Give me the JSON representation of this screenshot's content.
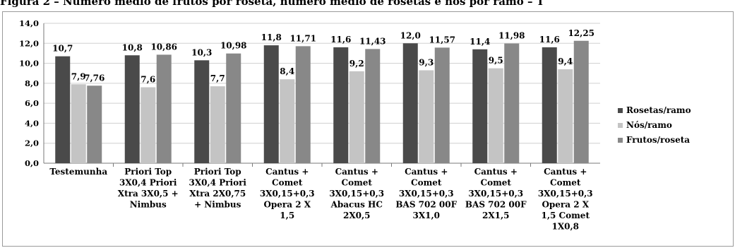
{
  "figure": {
    "title": "Figura 2 – Número médio de frutos por roseta, número médio de rosetas e nós por ramo – T"
  },
  "chart_data": {
    "type": "bar",
    "title": "",
    "xlabel": "",
    "ylabel": "",
    "ylim": [
      0,
      14
    ],
    "yticks": [
      "0,0",
      "2,0",
      "4,0",
      "6,0",
      "8,0",
      "10,0",
      "12,0",
      "14,0"
    ],
    "grid": true,
    "legend_position": "right",
    "categories": [
      "Testemunha",
      "Priori Top 3X0,4 Priori Xtra 3X0,5 + Nimbus",
      "Priori Top 3X0,4 Priori Xtra 2X0,75 + Nimbus",
      "Cantus + Comet 3X0,15+0,3 Opera 2 X 1,5",
      "Cantus + Comet 3X0,15+0,3 Abacus HC 2X0,5",
      "Cantus + Comet 3X0,15+0,3 BAS 702 00F 3X1,0",
      "Cantus + Comet 3X0,15+0,3 BAS 702 00F 2X1,5",
      "Cantus + Comet 3X0,15+0,3 Opera 2 X 1,5 Comet 1X0,8"
    ],
    "category_lines": [
      [
        "Testemunha"
      ],
      [
        "Priori Top",
        "3X0,4 Priori",
        "Xtra 3X0,5 +",
        "Nimbus"
      ],
      [
        "Priori Top",
        "3X0,4 Priori",
        "Xtra 2X0,75",
        "+ Nimbus"
      ],
      [
        "Cantus +",
        "Comet",
        "3X0,15+0,3",
        "Opera 2 X",
        "1,5"
      ],
      [
        "Cantus +",
        "Comet",
        "3X0,15+0,3",
        "Abacus HC",
        "2X0,5"
      ],
      [
        "Cantus +",
        "Comet",
        "3X0,15+0,3",
        "BAS 702 00F",
        "3X1,0"
      ],
      [
        "Cantus +",
        "Comet",
        "3X0,15+0,3",
        "BAS 702 00F",
        "2X1,5"
      ],
      [
        "Cantus +",
        "Comet",
        "3X0,15+0,3",
        "Opera 2 X",
        "1,5 Comet",
        "1X0,8"
      ]
    ],
    "series": [
      {
        "name": "Rosetas/ramo",
        "color": "#4a4a4a",
        "values": [
          10.7,
          10.8,
          10.3,
          11.8,
          11.6,
          12.0,
          11.4,
          11.6
        ],
        "labels": [
          "10,7",
          "10,8",
          "10,3",
          "11,8",
          "11,6",
          "12,0",
          "11,4",
          "11,6"
        ]
      },
      {
        "name": "Nós/ramo",
        "color": "#c4c4c4",
        "values": [
          7.9,
          7.6,
          7.7,
          8.4,
          9.2,
          9.3,
          9.5,
          9.4
        ],
        "labels": [
          "7,9",
          "7,6",
          "7,7",
          "8,4",
          "9,2",
          "9,3",
          "9,5",
          "9,4"
        ]
      },
      {
        "name": "Frutos/roseta",
        "color": "#888888",
        "values": [
          7.76,
          10.86,
          10.98,
          11.71,
          11.43,
          11.57,
          11.98,
          12.25
        ],
        "labels": [
          "7,76",
          "10,86",
          "10,98",
          "11,71",
          "11,43",
          "11,57",
          "11,98",
          "12,25"
        ]
      }
    ]
  }
}
